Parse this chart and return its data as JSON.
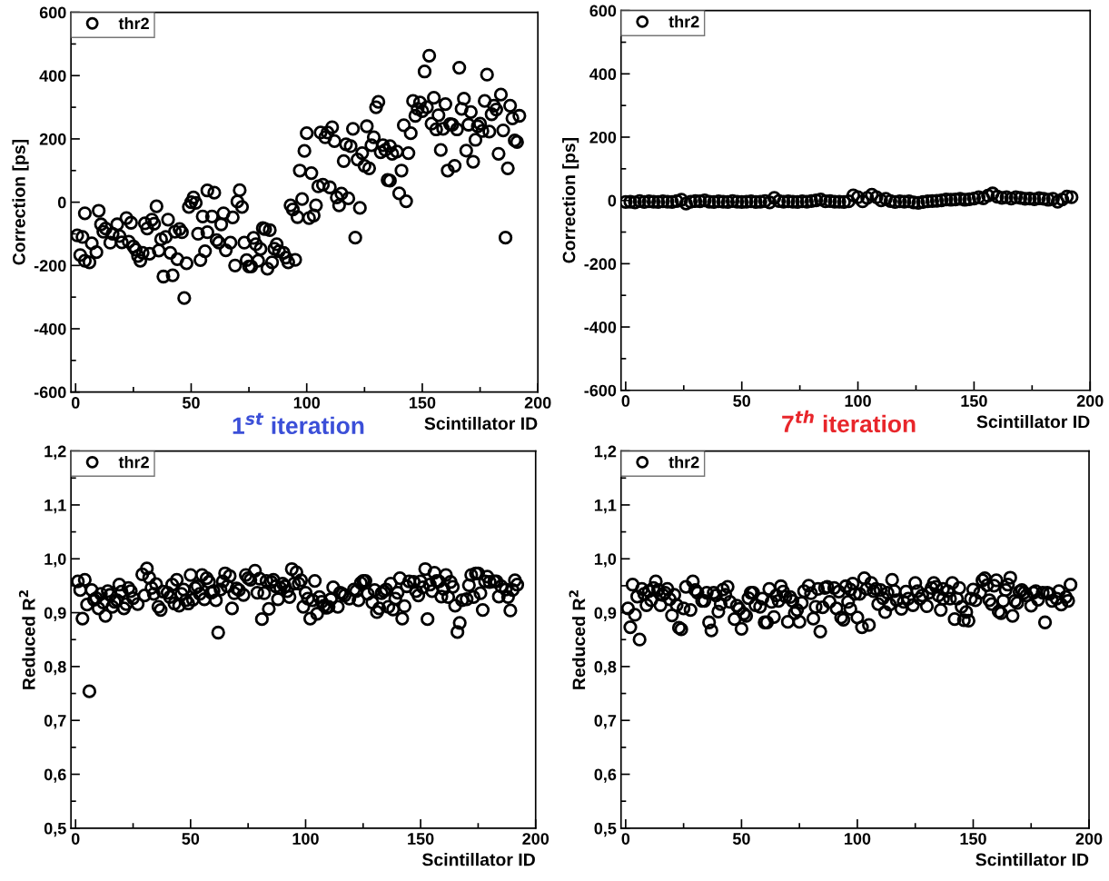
{
  "chart_data": [
    {
      "type": "scatter",
      "ylabel": "Correction [ps]",
      "xlabel": "Scintillator ID",
      "annotations": [
        "1$^{st}$ iteration"
      ],
      "xlim": [
        -2,
        200
      ],
      "ylim": [
        -600,
        600
      ],
      "xticks": [
        0,
        50,
        100,
        150,
        200
      ],
      "yticks": [
        -600,
        -400,
        -200,
        0,
        200,
        400,
        600
      ],
      "legend": "top left",
      "marker": "circle",
      "grid": false,
      "series": [
        {
          "name": "thr2",
          "color": "#000000",
          "x": [
            0.7,
            2,
            3,
            4,
            4,
            6,
            7,
            9,
            10,
            11,
            12,
            13,
            15,
            16,
            18,
            19,
            20,
            22,
            24,
            23,
            25,
            26,
            27,
            28,
            29,
            30,
            31,
            32,
            33,
            34,
            35,
            36,
            37,
            38,
            39,
            40,
            41,
            42,
            43,
            44,
            45,
            46,
            47,
            48,
            49,
            50,
            51,
            52,
            53,
            54,
            55,
            56,
            57,
            57,
            59,
            60,
            61,
            62,
            63,
            64,
            65,
            67,
            68,
            69,
            70,
            71,
            72,
            73,
            74,
            75,
            76,
            77,
            78,
            79,
            80,
            81,
            82,
            83,
            84,
            85,
            86,
            87,
            88,
            90,
            91,
            92,
            93,
            94,
            95,
            96,
            97,
            98,
            99,
            100,
            101,
            102,
            103,
            104,
            105,
            106,
            107,
            108,
            109,
            110,
            111,
            112,
            113,
            114,
            115,
            116,
            117,
            118,
            119,
            120,
            121,
            122,
            123,
            124,
            125,
            126,
            127,
            128,
            129,
            130,
            131,
            132,
            133,
            134,
            135,
            136,
            136,
            137,
            139,
            140,
            141,
            142,
            143,
            144,
            145,
            146,
            147,
            148,
            149,
            150,
            151,
            152,
            153,
            154,
            155,
            156,
            157,
            158,
            159,
            160,
            161,
            162,
            163,
            164,
            165,
            166,
            167,
            168,
            169,
            170,
            171,
            172,
            173,
            174,
            175,
            176,
            177,
            178,
            179,
            180,
            181,
            182,
            183,
            184,
            185,
            186,
            187,
            188,
            189,
            190,
            191,
            192
          ],
          "values": [
            -105,
            -167,
            -110,
            -35,
            -185,
            -190,
            -130,
            -158,
            -27,
            -70,
            -93,
            -83,
            -128,
            -100,
            -70,
            -107,
            -127,
            -50,
            -65,
            -125,
            -140,
            -150,
            -170,
            -185,
            -160,
            -67,
            -83,
            -163,
            -55,
            -68,
            -13,
            -153,
            -117,
            -235,
            -110,
            -55,
            -160,
            -231,
            -93,
            -180,
            -85,
            -95,
            -303,
            -193,
            -15,
            0,
            15,
            -2,
            -100,
            -183,
            -45,
            -155,
            -95,
            37,
            -45,
            30,
            -120,
            -128,
            -70,
            -35,
            -152,
            -128,
            -48,
            -200,
            2,
            38,
            -15,
            -128,
            -183,
            -203,
            -203,
            -113,
            -133,
            -185,
            -148,
            -82,
            -85,
            -210,
            -88,
            -190,
            -147,
            -133,
            -155,
            -160,
            -175,
            -190,
            -10,
            -23,
            -182,
            -47,
            100,
            10,
            162,
            218,
            -50,
            92,
            -42,
            -10,
            50,
            220,
            55,
            205,
            220,
            47,
            237,
            193,
            15,
            -10,
            27,
            130,
            183,
            12,
            177,
            232,
            -112,
            135,
            -18,
            155,
            115,
            240,
            107,
            180,
            205,
            300,
            317,
            158,
            180,
            165,
            70,
            177,
            68,
            153,
            160,
            28,
            100,
            243,
            3,
            155,
            218,
            320,
            273,
            295,
            315,
            288,
            413,
            300,
            463,
            248,
            330,
            230,
            275,
            165,
            232,
            310,
            100,
            247,
            245,
            115,
            230,
            425,
            295,
            327,
            163,
            245,
            285,
            128,
            197,
            240,
            248,
            225,
            320,
            403,
            223,
            278,
            305,
            293,
            153,
            340,
            227,
            -112,
            107,
            305,
            265,
            195,
            190,
            273
          ]
        }
      ]
    },
    {
      "type": "scatter",
      "ylabel": "Correction [ps]",
      "xlabel": "Scintillator ID",
      "annotations": [
        "7$^{th}$ iteration"
      ],
      "xlim": [
        -2,
        200
      ],
      "ylim": [
        -600,
        600
      ],
      "xticks": [
        0,
        50,
        100,
        150,
        200
      ],
      "yticks": [
        -600,
        -400,
        -200,
        0,
        200,
        400,
        600
      ],
      "legend": "top left",
      "marker": "circle",
      "grid": false,
      "series": [
        {
          "name": "thr2",
          "color": "#000000",
          "x": [
            0,
            2,
            4,
            6,
            8,
            10,
            12,
            14,
            16,
            18,
            20,
            22,
            24,
            26,
            28,
            30,
            32,
            34,
            36,
            38,
            40,
            42,
            44,
            46,
            48,
            50,
            52,
            54,
            56,
            58,
            60,
            62,
            64,
            66,
            68,
            70,
            72,
            74,
            76,
            78,
            80,
            82,
            84,
            86,
            88,
            90,
            92,
            94,
            96,
            98,
            100,
            102,
            104,
            106,
            108,
            110,
            112,
            114,
            116,
            118,
            120,
            122,
            124,
            126,
            128,
            130,
            132,
            134,
            136,
            138,
            140,
            142,
            144,
            146,
            148,
            150,
            152,
            154,
            156,
            158,
            160,
            162,
            164,
            166,
            168,
            170,
            172,
            174,
            176,
            178,
            180,
            182,
            184,
            186,
            188,
            190,
            192
          ],
          "values": [
            -5,
            -4,
            -6,
            -2,
            -5,
            -3,
            -4,
            -5,
            -3,
            -4,
            -5,
            -2,
            2,
            -10,
            -4,
            -2,
            -3,
            0,
            -4,
            -5,
            -3,
            -4,
            -5,
            -2,
            -4,
            -5,
            -4,
            -3,
            -5,
            -4,
            -2,
            -6,
            8,
            -2,
            -4,
            -3,
            -4,
            -5,
            -3,
            -4,
            -2,
            0,
            3,
            -3,
            -2,
            -4,
            -4,
            -5,
            -3,
            16,
            10,
            -3,
            8,
            18,
            10,
            0,
            5,
            -2,
            -5,
            -3,
            -4,
            -3,
            -6,
            -8,
            -5,
            -3,
            -2,
            -1,
            0,
            3,
            2,
            3,
            5,
            2,
            4,
            6,
            10,
            7,
            15,
            22,
            12,
            8,
            10,
            6,
            10,
            8,
            5,
            6,
            4,
            7,
            5,
            2,
            5,
            -4,
            3,
            12,
            10
          ]
        }
      ]
    },
    {
      "type": "scatter",
      "ylabel": "Reduced R$^{2}$",
      "xlabel": "Scintillator ID",
      "xlim": [
        -2,
        200
      ],
      "ylim": [
        0.5,
        1.2
      ],
      "xticks": [
        0,
        50,
        100,
        150,
        200
      ],
      "yticks": [
        {
          "value": 0.5,
          "label": "0,5"
        },
        {
          "value": 0.6,
          "label": "0,6"
        },
        {
          "value": 0.7,
          "label": "0,7"
        },
        {
          "value": 0.8,
          "label": "0,8"
        },
        {
          "value": 0.9,
          "label": "0,9"
        },
        {
          "value": 1.0,
          "label": "1,0"
        },
        {
          "value": 1.1,
          "label": "1,1"
        },
        {
          "value": 1.2,
          "label": "1,2"
        }
      ],
      "legend": "top left",
      "marker": "circle",
      "grid": false,
      "series": [
        {
          "name": "thr2",
          "color": "#000000",
          "x": [
            1,
            2,
            3,
            4,
            5,
            6,
            7,
            8,
            9,
            10,
            11,
            12,
            13,
            14,
            15,
            16,
            17,
            18,
            19,
            20,
            21,
            22,
            23,
            24,
            25,
            27,
            29,
            30,
            31,
            32,
            33,
            34,
            35,
            36,
            37,
            38,
            40,
            41,
            42,
            43,
            44,
            45,
            46,
            47,
            48,
            49,
            50,
            51,
            52,
            53,
            54,
            55,
            56,
            57,
            58,
            59,
            60,
            61,
            62,
            63,
            64,
            65,
            66,
            67,
            68,
            69,
            70,
            71,
            73,
            74,
            75,
            76,
            78,
            79,
            80,
            81,
            82,
            83,
            84,
            85,
            86,
            87,
            88,
            89,
            90,
            91,
            92,
            93,
            94,
            95,
            96,
            97,
            98,
            99,
            100,
            101,
            102,
            103,
            104,
            105,
            106,
            107,
            108,
            109,
            110,
            111,
            112,
            114,
            115,
            116,
            117,
            119,
            121,
            122,
            123,
            124,
            125,
            126,
            127,
            129,
            130,
            131,
            132,
            133,
            134,
            135,
            136,
            137,
            138,
            139,
            140,
            141,
            142,
            143,
            144,
            145,
            147,
            148,
            149,
            150,
            151,
            152,
            153,
            154,
            155,
            156,
            157,
            158,
            159,
            160,
            161,
            162,
            163,
            164,
            165,
            166,
            167,
            168,
            170,
            171,
            172,
            173,
            174,
            175,
            176,
            177,
            178,
            179,
            180,
            182,
            183,
            184,
            185,
            187,
            188,
            189,
            190,
            191,
            192
          ],
          "values": [
            0.958,
            0.942,
            0.889,
            0.961,
            0.915,
            0.754,
            0.942,
            0.924,
            0.927,
            0.908,
            0.935,
            0.919,
            0.894,
            0.94,
            0.933,
            0.911,
            0.92,
            0.923,
            0.952,
            0.939,
            0.908,
            0.916,
            0.946,
            0.94,
            0.927,
            0.916,
            0.971,
            0.932,
            0.982,
            0.965,
            0.946,
            0.935,
            0.953,
            0.911,
            0.905,
            0.939,
            0.937,
            0.929,
            0.952,
            0.917,
            0.961,
            0.913,
            0.935,
            0.943,
            0.923,
            0.917,
            0.97,
            0.924,
            0.946,
            0.949,
            0.935,
            0.97,
            0.925,
            0.964,
            0.957,
            0.937,
            0.94,
            0.923,
            0.863,
            0.943,
            0.958,
            0.973,
            0.949,
            0.968,
            0.908,
            0.936,
            0.945,
            0.942,
            0.933,
            0.97,
            0.964,
            0.961,
            0.978,
            0.937,
            0.963,
            0.888,
            0.936,
            0.959,
            0.907,
            0.957,
            0.961,
            0.949,
            0.925,
            0.946,
            0.954,
            0.949,
            0.94,
            0.929,
            0.981,
            0.954,
            0.975,
            0.954,
            0.96,
            0.911,
            0.937,
            0.926,
            0.889,
            0.923,
            0.959,
            0.898,
            0.929,
            0.92,
            0.913,
            0.909,
            0.911,
            0.925,
            0.947,
            0.911,
            0.937,
            0.935,
            0.932,
            0.926,
            0.943,
            0.94,
            0.923,
            0.955,
            0.959,
            0.959,
            0.935,
            0.919,
            0.942,
            0.901,
            0.908,
            0.936,
            0.94,
            0.943,
            0.911,
            0.954,
            0.906,
            0.926,
            0.937,
            0.964,
            0.889,
            0.912,
            0.949,
            0.958,
            0.957,
            0.94,
            0.932,
            0.958,
            0.947,
            0.981,
            0.888,
            0.952,
            0.94,
            0.974,
            0.959,
            0.958,
            0.93,
            0.944,
            0.97,
            0.929,
            0.957,
            0.948,
            0.913,
            0.864,
            0.881,
            0.923,
            0.925,
            0.951,
            0.97,
            0.929,
            0.973,
            0.973,
            0.936,
            0.905,
            0.958,
            0.967,
            0.957,
            0.958,
            0.958,
            0.93,
            0.949,
            0.943,
            0.929,
            0.904,
            0.942,
            0.96,
            0.952
          ]
        }
      ]
    },
    {
      "type": "scatter",
      "ylabel": "Reduced R$^{2}$",
      "xlabel": "Scintillator ID",
      "xlim": [
        -2,
        200
      ],
      "ylim": [
        0.5,
        1.2
      ],
      "xticks": [
        0,
        50,
        100,
        150,
        200
      ],
      "yticks": [
        {
          "value": 0.5,
          "label": "0,5"
        },
        {
          "value": 0.6,
          "label": "0,6"
        },
        {
          "value": 0.7,
          "label": "0,7"
        },
        {
          "value": 0.8,
          "label": "0,8"
        },
        {
          "value": 0.9,
          "label": "0,9"
        },
        {
          "value": 1.0,
          "label": "1,0"
        },
        {
          "value": 1.1,
          "label": "1,1"
        },
        {
          "value": 1.2,
          "label": "1,2"
        }
      ],
      "legend": "top left",
      "marker": "circle",
      "grid": false,
      "series": [
        {
          "name": "thr2",
          "color": "#000000",
          "x": [
            1,
            2,
            3,
            4,
            5,
            6,
            7,
            8,
            9,
            10,
            11,
            12,
            13,
            14,
            15,
            16,
            17,
            18,
            19,
            20,
            21,
            22,
            23,
            24,
            25,
            26,
            28,
            29,
            30,
            31,
            33,
            34,
            35,
            36,
            37,
            38,
            39,
            40,
            41,
            42,
            43,
            44,
            45,
            47,
            48,
            49,
            50,
            51,
            52,
            53,
            54,
            55,
            56,
            58,
            59,
            60,
            61,
            62,
            63,
            64,
            65,
            66,
            67,
            68,
            69,
            70,
            71,
            72,
            73,
            74,
            75,
            76,
            77,
            79,
            80,
            81,
            82,
            83,
            84,
            85,
            86,
            87,
            88,
            90,
            91,
            92,
            93,
            94,
            95,
            96,
            97,
            97,
            98,
            99,
            100,
            101,
            102,
            103,
            104,
            105,
            106,
            107,
            108,
            109,
            110,
            111,
            112,
            113,
            114,
            115,
            116,
            117,
            119,
            120,
            121,
            122,
            124,
            125,
            126,
            127,
            128,
            130,
            131,
            132,
            133,
            134,
            135,
            136,
            137,
            137,
            139,
            140,
            141,
            142,
            143,
            144,
            145,
            146,
            147,
            148,
            149,
            150,
            151,
            153,
            154,
            155,
            156,
            157,
            158,
            159,
            160,
            161,
            162,
            163,
            164,
            165,
            166,
            167,
            168,
            169,
            170,
            171,
            172,
            173,
            175,
            176,
            177,
            178,
            180,
            181,
            182,
            183,
            184,
            186,
            187,
            188,
            190,
            191,
            192
          ],
          "values": [
            0.908,
            0.873,
            0.952,
            0.896,
            0.93,
            0.85,
            0.944,
            0.935,
            0.914,
            0.94,
            0.923,
            0.946,
            0.958,
            0.942,
            0.914,
            0.933,
            0.937,
            0.944,
            0.925,
            0.895,
            0.933,
            0.914,
            0.872,
            0.869,
            0.908,
            0.948,
            0.905,
            0.958,
            0.942,
            0.937,
            0.922,
            0.922,
            0.937,
            0.882,
            0.867,
            0.937,
            0.932,
            0.902,
            0.916,
            0.943,
            0.933,
            0.948,
            0.92,
            0.888,
            0.913,
            0.907,
            0.87,
            0.898,
            0.894,
            0.927,
            0.937,
            0.937,
            0.914,
            0.911,
            0.926,
            0.882,
            0.882,
            0.944,
            0.92,
            0.892,
            0.932,
            0.922,
            0.949,
            0.939,
            0.93,
            0.883,
            0.929,
            0.922,
            0.899,
            0.905,
            0.883,
            0.918,
            0.94,
            0.95,
            0.936,
            0.889,
            0.911,
            0.944,
            0.865,
            0.91,
            0.946,
            0.948,
            0.92,
            0.946,
            0.908,
            0.939,
            0.891,
            0.887,
            0.949,
            0.92,
            0.907,
            0.943,
            0.954,
            0.935,
            0.891,
            0.935,
            0.873,
            0.964,
            0.944,
            0.877,
            0.955,
            0.94,
            0.944,
            0.916,
            0.942,
            0.927,
            0.901,
            0.937,
            0.915,
            0.961,
            0.94,
            0.923,
            0.907,
            0.92,
            0.939,
            0.926,
            0.914,
            0.955,
            0.94,
            0.926,
            0.932,
            0.912,
            0.937,
            0.946,
            0.955,
            0.948,
            0.932,
            0.905,
            0.944,
            0.926,
            0.94,
            0.926,
            0.955,
            0.888,
            0.926,
            0.946,
            0.911,
            0.886,
            0.901,
            0.885,
            0.926,
            0.943,
            0.923,
            0.937,
            0.96,
            0.964,
            0.951,
            0.923,
            0.916,
            0.95,
            0.96,
            0.902,
            0.899,
            0.922,
            0.942,
            0.952,
            0.965,
            0.894,
            0.922,
            0.918,
            0.939,
            0.942,
            0.937,
            0.932,
            0.913,
            0.937,
            0.94,
            0.924,
            0.937,
            0.882,
            0.937,
            0.935,
            0.922,
            0.926,
            0.94,
            0.915,
            0.929,
            0.922,
            0.952
          ]
        }
      ]
    }
  ]
}
